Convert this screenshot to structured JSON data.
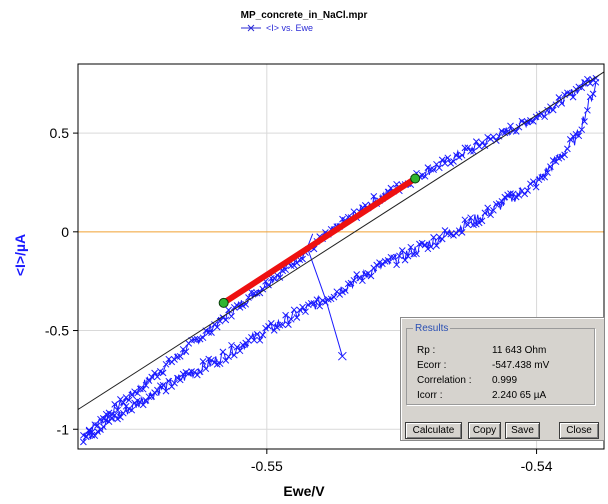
{
  "window": {
    "title": "MP_concrete_in_NaCl.mpr",
    "legend_label": "<I> vs. Ewe"
  },
  "chart_data": {
    "type": "line",
    "title": "MP_concrete_in_NaCl.mpr",
    "xlabel": "Ewe/V",
    "ylabel": "<I>/µA",
    "xlim": [
      -0.557,
      -0.5375
    ],
    "ylim": [
      -1.1,
      0.85
    ],
    "x_ticks": [
      -0.55,
      -0.54
    ],
    "x_tick_labels": [
      "-0.55",
      "-0.54"
    ],
    "y_ticks": [
      -1,
      -0.5,
      0,
      0.5
    ],
    "y_tick_labels": [
      "-1",
      "-0.5",
      "0",
      "0.5"
    ],
    "grid": true,
    "legend_position": "top",
    "series": [
      {
        "name": "<I> vs. Ewe",
        "color": "#1a1aff",
        "marker": "x",
        "upper_branch": {
          "x": [
            -0.5568,
            -0.5555,
            -0.554,
            -0.552,
            -0.55,
            -0.548,
            -0.546,
            -0.544,
            -0.542,
            -0.54,
            -0.5385,
            -0.5378
          ],
          "y": [
            -1.03,
            -0.88,
            -0.71,
            -0.48,
            -0.26,
            -0.04,
            0.16,
            0.31,
            0.45,
            0.58,
            0.72,
            0.8
          ]
        },
        "lower_branch": {
          "x": [
            -0.5568,
            -0.5555,
            -0.554,
            -0.552,
            -0.55,
            -0.548,
            -0.546,
            -0.544,
            -0.542,
            -0.54,
            -0.5385,
            -0.5378
          ],
          "y": [
            -1.05,
            -0.93,
            -0.8,
            -0.66,
            -0.5,
            -0.35,
            -0.19,
            -0.06,
            0.08,
            0.25,
            0.48,
            0.75
          ]
        },
        "spike": {
          "x": [
            -0.5483,
            -0.5485,
            -0.5478,
            -0.5472
          ],
          "y": [
            -0.01,
            -0.08,
            -0.35,
            -0.63
          ]
        }
      },
      {
        "name": "fit",
        "color": "#222222",
        "x": [
          -0.557,
          -0.5375
        ],
        "y": [
          -0.9,
          0.81
        ]
      },
      {
        "name": "fit region",
        "color": "#ee1111",
        "x": [
          -0.5516,
          -0.5445
        ],
        "y": [
          -0.36,
          0.27
        ]
      }
    ],
    "fit_endpoints": {
      "color": "#2fb52f",
      "x": [
        -0.5516,
        -0.5445
      ],
      "y": [
        -0.36,
        0.27
      ]
    },
    "zero_line": {
      "y": 0,
      "color": "#f0a030"
    }
  },
  "results": {
    "group_label": "Results",
    "rows": [
      {
        "label": "Rp :",
        "value": "11 643 Ohm"
      },
      {
        "label": "Ecorr :",
        "value": "-547.438 mV"
      },
      {
        "label": "Correlation :",
        "value": "0.999"
      },
      {
        "label": "Icorr :",
        "value": "2.240 65 µA"
      }
    ],
    "buttons": {
      "calculate": "Calculate",
      "copy": "Copy",
      "save": "Save",
      "close": "Close"
    }
  }
}
